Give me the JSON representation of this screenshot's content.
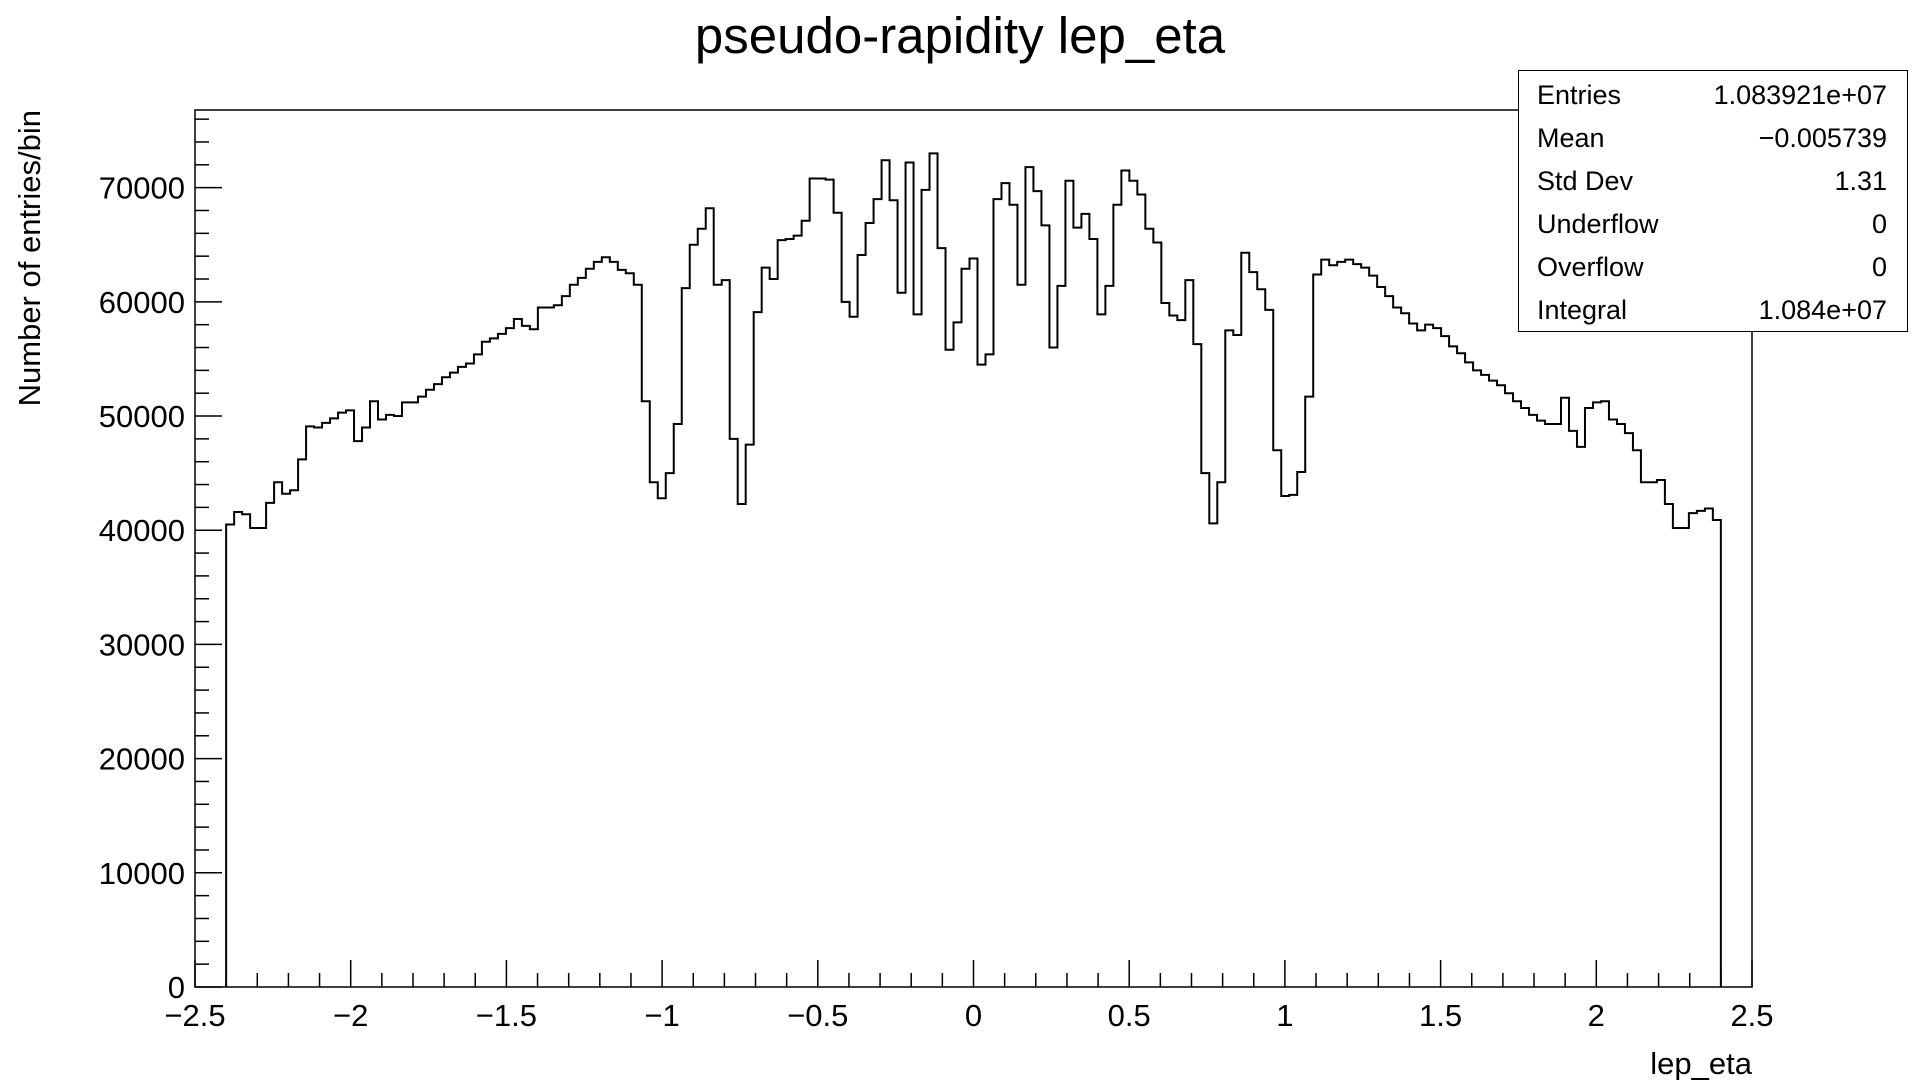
{
  "chart_data": {
    "type": "bar",
    "title": "pseudo-rapidity lep_eta",
    "xlabel": "lep_eta",
    "ylabel": "Number of entries/bin",
    "xlim": [
      -2.5,
      2.5
    ],
    "ylim": [
      0,
      76800
    ],
    "x_ticks": [
      -2.5,
      -2,
      -1.5,
      -1,
      -0.5,
      0,
      0.5,
      1,
      1.5,
      2,
      2.5
    ],
    "x_tick_labels": [
      "−2.5",
      "−2",
      "−1.5",
      "−1",
      "−0.5",
      "0",
      "0.5",
      "1",
      "1.5",
      "2",
      "2.5"
    ],
    "y_ticks": [
      0,
      10000,
      20000,
      30000,
      40000,
      50000,
      60000,
      70000
    ],
    "y_tick_labels": [
      "0",
      "10000",
      "20000",
      "30000",
      "40000",
      "50000",
      "60000",
      "70000"
    ],
    "bin_range": [
      -2.4,
      2.4
    ],
    "values": [
      40500,
      41600,
      41400,
      40200,
      40200,
      42400,
      44200,
      43200,
      43500,
      46200,
      49100,
      49000,
      49400,
      49800,
      50300,
      50500,
      47800,
      49000,
      51300,
      49700,
      50100,
      50000,
      51200,
      51200,
      51700,
      52300,
      52800,
      53400,
      53800,
      54300,
      54600,
      55400,
      56500,
      56800,
      57200,
      57700,
      58500,
      57900,
      57600,
      59500,
      59500,
      59700,
      60500,
      61500,
      62100,
      62900,
      63500,
      63900,
      63500,
      62800,
      62500,
      61500,
      51300,
      44200,
      42800,
      45000,
      49300,
      61200,
      65000,
      66400,
      68200,
      61500,
      61900,
      48000,
      42300,
      47500,
      59100,
      63000,
      62000,
      65400,
      65500,
      65800,
      67100,
      70800,
      70800,
      70700,
      67800,
      60000,
      58700,
      64100,
      66900,
      69000,
      72400,
      68900,
      60800,
      72200,
      58900,
      69800,
      73000,
      64700,
      55800,
      58200,
      62900,
      63800,
      54500,
      55400,
      69000,
      70400,
      68500,
      61500,
      71800,
      69700,
      66700,
      56000,
      61400,
      70600,
      66500,
      67700,
      65500,
      58900,
      61400,
      68500,
      71500,
      70600,
      69400,
      66400,
      65200,
      59900,
      58800,
      58400,
      61900,
      56300,
      45000,
      40600,
      44200,
      57500,
      57100,
      64300,
      62600,
      61100,
      59300,
      47000,
      43000,
      43100,
      45100,
      51700,
      62400,
      63700,
      63200,
      63500,
      63700,
      63300,
      63000,
      62300,
      61300,
      60500,
      59500,
      59000,
      58100,
      57500,
      58000,
      57700,
      57000,
      56100,
      55500,
      54700,
      54000,
      53600,
      53100,
      52700,
      52000,
      51300,
      50700,
      50100,
      49600,
      49300,
      49300,
      51600,
      48700,
      47300,
      50700,
      51200,
      51300,
      49700,
      49300,
      48500,
      47000,
      44200,
      44200,
      44400,
      42300,
      40200,
      40200,
      41500,
      41700,
      41900,
      40900
    ],
    "stats": {
      "header": "",
      "rows": [
        {
          "label": "Entries",
          "value": "1.083921e+07"
        },
        {
          "label": "Mean",
          "value": "−0.005739"
        },
        {
          "label": "Std Dev",
          "value": "1.31"
        },
        {
          "label": "Underflow",
          "value": "0"
        },
        {
          "label": "Overflow",
          "value": "0"
        },
        {
          "label": "Integral",
          "value": "1.084e+07"
        }
      ]
    },
    "grid": false,
    "legend": "top-right stats box",
    "line_color": "#000000"
  }
}
